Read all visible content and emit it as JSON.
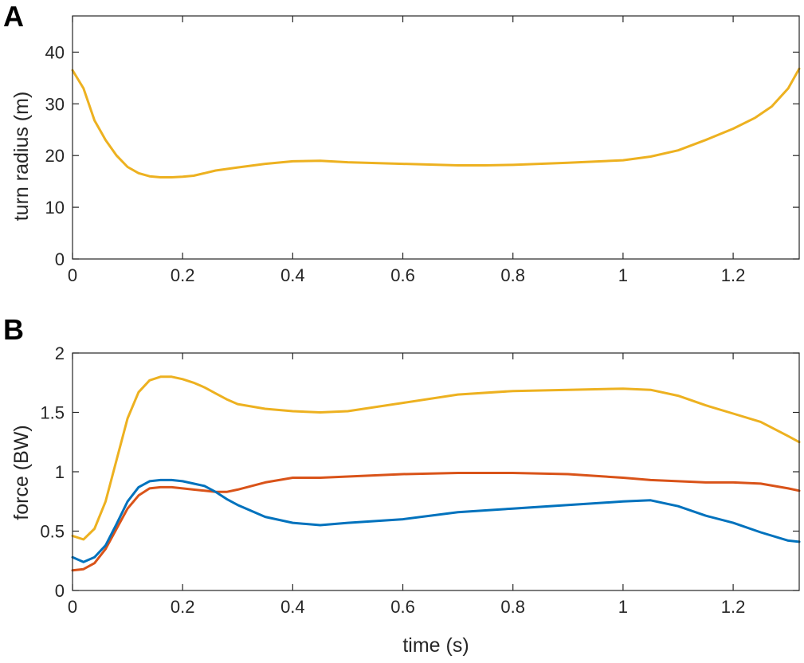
{
  "chart_data": [
    {
      "type": "line",
      "panel_label": "A",
      "title": "",
      "xlabel": "",
      "ylabel": "turn radius (m)",
      "xlim": [
        0,
        1.32
      ],
      "ylim": [
        0,
        47
      ],
      "xticks": [
        0,
        0.2,
        0.4,
        0.6,
        0.8,
        1,
        1.2
      ],
      "xtick_labels": [
        "0",
        "0.2",
        "0.4",
        "0.6",
        "0.8",
        "1",
        "1.2"
      ],
      "yticks": [
        0,
        10,
        20,
        30,
        40
      ],
      "ytick_labels": [
        "0",
        "10",
        "20",
        "30",
        "40"
      ],
      "grid": false,
      "series": [
        {
          "color": "#EDB120",
          "x": [
            0,
            0.02,
            0.04,
            0.06,
            0.08,
            0.1,
            0.12,
            0.14,
            0.16,
            0.18,
            0.2,
            0.22,
            0.24,
            0.26,
            0.3,
            0.35,
            0.4,
            0.45,
            0.5,
            0.6,
            0.7,
            0.75,
            0.8,
            0.9,
            1.0,
            1.05,
            1.1,
            1.15,
            1.2,
            1.24,
            1.27,
            1.3,
            1.32
          ],
          "y": [
            36.5,
            33,
            26.8,
            23,
            20,
            17.8,
            16.6,
            16,
            15.8,
            15.8,
            15.9,
            16.1,
            16.6,
            17.1,
            17.7,
            18.4,
            18.9,
            19,
            18.7,
            18.4,
            18.1,
            18.1,
            18.2,
            18.6,
            19.1,
            19.8,
            21,
            23,
            25.2,
            27.3,
            29.5,
            33,
            36.8
          ]
        }
      ]
    },
    {
      "type": "line",
      "panel_label": "B",
      "title": "",
      "xlabel": "time (s)",
      "ylabel": "force (BW)",
      "xlim": [
        0,
        1.32
      ],
      "ylim": [
        0,
        2
      ],
      "xticks": [
        0,
        0.2,
        0.4,
        0.6,
        0.8,
        1,
        1.2
      ],
      "xtick_labels": [
        "0",
        "0.2",
        "0.4",
        "0.6",
        "0.8",
        "1",
        "1.2"
      ],
      "yticks": [
        0,
        0.5,
        1,
        1.5,
        2
      ],
      "ytick_labels": [
        "0",
        "0.5",
        "1",
        "1.5",
        "2"
      ],
      "grid": false,
      "series": [
        {
          "color": "#EDB120",
          "x": [
            0,
            0.02,
            0.04,
            0.06,
            0.08,
            0.1,
            0.12,
            0.14,
            0.16,
            0.18,
            0.2,
            0.22,
            0.24,
            0.26,
            0.28,
            0.3,
            0.35,
            0.4,
            0.45,
            0.5,
            0.6,
            0.7,
            0.8,
            0.9,
            1.0,
            1.05,
            1.1,
            1.15,
            1.2,
            1.25,
            1.3,
            1.32
          ],
          "y": [
            0.46,
            0.43,
            0.52,
            0.75,
            1.1,
            1.45,
            1.67,
            1.77,
            1.8,
            1.8,
            1.78,
            1.75,
            1.71,
            1.66,
            1.61,
            1.57,
            1.53,
            1.51,
            1.5,
            1.51,
            1.58,
            1.65,
            1.68,
            1.69,
            1.7,
            1.69,
            1.64,
            1.56,
            1.49,
            1.42,
            1.3,
            1.25
          ]
        },
        {
          "color": "#D95319",
          "x": [
            0,
            0.02,
            0.04,
            0.06,
            0.08,
            0.1,
            0.12,
            0.14,
            0.16,
            0.18,
            0.2,
            0.22,
            0.24,
            0.26,
            0.28,
            0.3,
            0.35,
            0.4,
            0.45,
            0.5,
            0.6,
            0.7,
            0.8,
            0.9,
            1.0,
            1.05,
            1.1,
            1.15,
            1.2,
            1.25,
            1.3,
            1.32
          ],
          "y": [
            0.17,
            0.18,
            0.23,
            0.35,
            0.52,
            0.69,
            0.8,
            0.86,
            0.87,
            0.87,
            0.86,
            0.85,
            0.84,
            0.83,
            0.83,
            0.85,
            0.91,
            0.95,
            0.95,
            0.96,
            0.98,
            0.99,
            0.99,
            0.98,
            0.95,
            0.93,
            0.92,
            0.91,
            0.91,
            0.9,
            0.86,
            0.84
          ]
        },
        {
          "color": "#0072BD",
          "x": [
            0,
            0.02,
            0.04,
            0.06,
            0.08,
            0.1,
            0.12,
            0.14,
            0.16,
            0.18,
            0.2,
            0.22,
            0.24,
            0.26,
            0.28,
            0.3,
            0.35,
            0.4,
            0.45,
            0.5,
            0.6,
            0.7,
            0.8,
            0.9,
            1.0,
            1.05,
            1.1,
            1.15,
            1.2,
            1.25,
            1.3,
            1.32
          ],
          "y": [
            0.28,
            0.24,
            0.28,
            0.38,
            0.56,
            0.75,
            0.87,
            0.92,
            0.93,
            0.93,
            0.92,
            0.9,
            0.88,
            0.83,
            0.77,
            0.72,
            0.62,
            0.57,
            0.55,
            0.57,
            0.6,
            0.66,
            0.69,
            0.72,
            0.75,
            0.76,
            0.71,
            0.63,
            0.57,
            0.49,
            0.42,
            0.41
          ]
        }
      ]
    }
  ]
}
